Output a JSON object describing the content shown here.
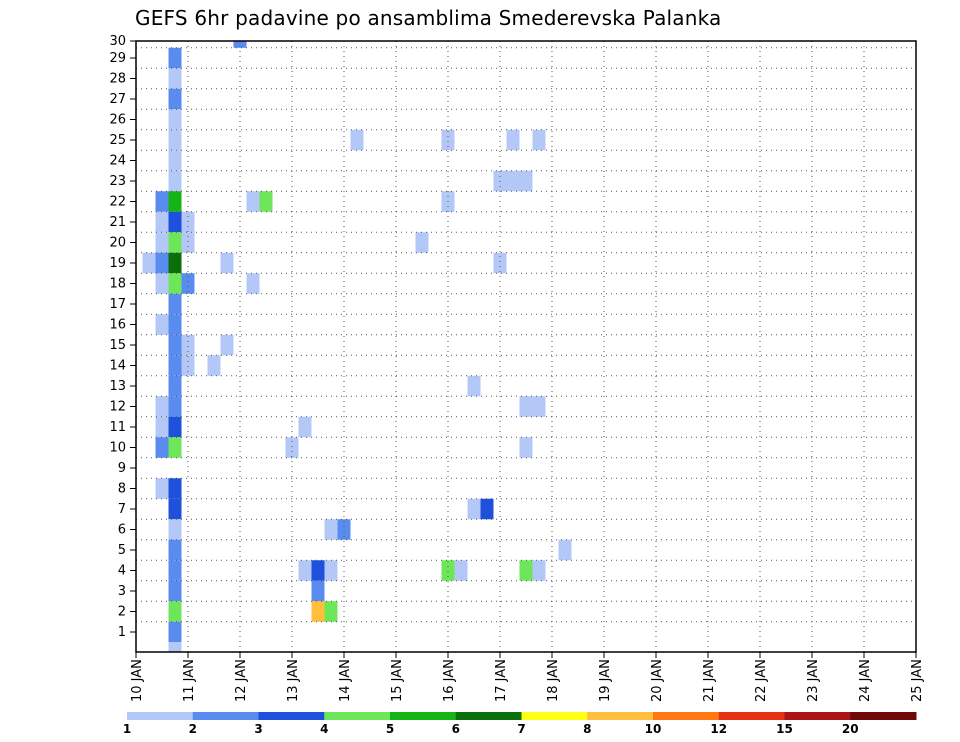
{
  "chart_data": {
    "type": "heatmap",
    "title": "GEFS 6hr padavine po ansamblima Smederevska Palanka",
    "xlabel": "",
    "ylabel": "",
    "x_tick_labels": [
      "10 JAN",
      "11 JAN",
      "12 JAN",
      "13 JAN",
      "14 JAN",
      "15 JAN",
      "16 JAN",
      "17 JAN",
      "18 JAN",
      "19 JAN",
      "20 JAN",
      "21 JAN",
      "22 JAN",
      "23 JAN",
      "24 JAN",
      "25 JAN"
    ],
    "y_tick_labels": [
      "1",
      "2",
      "3",
      "4",
      "5",
      "6",
      "7",
      "8",
      "9",
      "10",
      "11",
      "12",
      "13",
      "14",
      "15",
      "16",
      "17",
      "18",
      "19",
      "20",
      "21",
      "22",
      "23",
      "24",
      "25",
      "26",
      "27",
      "28",
      "29",
      "30"
    ],
    "ylim": [
      1,
      30
    ],
    "grid": true,
    "colorbar": {
      "position": "bottom",
      "colors": [
        "#b4c8f8",
        "#5a8cf0",
        "#1e50dc",
        "#6ee65a",
        "#14b414",
        "#0a6e0a",
        "#ffff14",
        "#ffbe3c",
        "#ff7814",
        "#e63214",
        "#aa1414",
        "#6e0a0a"
      ],
      "labels": [
        "1",
        "2",
        "3",
        "4",
        "5",
        "6",
        "7",
        "8",
        "10",
        "12",
        "15",
        "20"
      ]
    },
    "cells_note": "x = forecast 6-hour step index from 10 JAN 00Z (4 steps per day); y = ensemble member; level = colorbar bin index (0 = 1-2 mm)",
    "cells": [
      {
        "x": 6,
        "y": 30,
        "level": 1
      },
      {
        "x": 1,
        "y": 29,
        "level": 1
      },
      {
        "x": 1,
        "y": 28,
        "level": 0
      },
      {
        "x": 1,
        "y": 27,
        "level": 1
      },
      {
        "x": 1,
        "y": 26,
        "level": 0
      },
      {
        "x": 1,
        "y": 25,
        "level": 0
      },
      {
        "x": 15,
        "y": 25,
        "level": 0
      },
      {
        "x": 22,
        "y": 25,
        "level": 0
      },
      {
        "x": 27,
        "y": 25,
        "level": 0
      },
      {
        "x": 29,
        "y": 25,
        "level": 0
      },
      {
        "x": 1,
        "y": 24,
        "level": 0
      },
      {
        "x": 1,
        "y": 23,
        "level": 0
      },
      {
        "x": 26,
        "y": 23,
        "level": 0
      },
      {
        "x": 27,
        "y": 23,
        "level": 0
      },
      {
        "x": 28,
        "y": 23,
        "level": 0
      },
      {
        "x": 0,
        "y": 22,
        "level": 1
      },
      {
        "x": 1,
        "y": 22,
        "level": 4
      },
      {
        "x": 7,
        "y": 22,
        "level": 0
      },
      {
        "x": 8,
        "y": 22,
        "level": 3
      },
      {
        "x": 22,
        "y": 22,
        "level": 0
      },
      {
        "x": 0,
        "y": 21,
        "level": 0
      },
      {
        "x": 1,
        "y": 21,
        "level": 2
      },
      {
        "x": 2,
        "y": 21,
        "level": 0
      },
      {
        "x": 0,
        "y": 20,
        "level": 0
      },
      {
        "x": 1,
        "y": 20,
        "level": 3
      },
      {
        "x": 2,
        "y": 20,
        "level": 0
      },
      {
        "x": 20,
        "y": 20,
        "level": 0
      },
      {
        "x": -1,
        "y": 19,
        "level": 0
      },
      {
        "x": 0,
        "y": 19,
        "level": 1
      },
      {
        "x": 1,
        "y": 19,
        "level": 5
      },
      {
        "x": 5,
        "y": 19,
        "level": 0
      },
      {
        "x": 26,
        "y": 19,
        "level": 0
      },
      {
        "x": 0,
        "y": 18,
        "level": 0
      },
      {
        "x": 1,
        "y": 18,
        "level": 3
      },
      {
        "x": 2,
        "y": 18,
        "level": 1
      },
      {
        "x": 7,
        "y": 18,
        "level": 0
      },
      {
        "x": 1,
        "y": 17,
        "level": 1
      },
      {
        "x": 0,
        "y": 16,
        "level": 0
      },
      {
        "x": 1,
        "y": 16,
        "level": 1
      },
      {
        "x": 1,
        "y": 15,
        "level": 1
      },
      {
        "x": 2,
        "y": 15,
        "level": 0
      },
      {
        "x": 5,
        "y": 15,
        "level": 0
      },
      {
        "x": 1,
        "y": 14,
        "level": 1
      },
      {
        "x": 2,
        "y": 14,
        "level": 0
      },
      {
        "x": 4,
        "y": 14,
        "level": 0
      },
      {
        "x": 1,
        "y": 13,
        "level": 1
      },
      {
        "x": 24,
        "y": 13,
        "level": 0
      },
      {
        "x": 0,
        "y": 12,
        "level": 0
      },
      {
        "x": 1,
        "y": 12,
        "level": 1
      },
      {
        "x": 28,
        "y": 12,
        "level": 0
      },
      {
        "x": 29,
        "y": 12,
        "level": 0
      },
      {
        "x": 0,
        "y": 11,
        "level": 0
      },
      {
        "x": 1,
        "y": 11,
        "level": 2
      },
      {
        "x": 11,
        "y": 11,
        "level": 0
      },
      {
        "x": 0,
        "y": 10,
        "level": 1
      },
      {
        "x": 1,
        "y": 10,
        "level": 3
      },
      {
        "x": 10,
        "y": 10,
        "level": 0
      },
      {
        "x": 28,
        "y": 10,
        "level": 0
      },
      {
        "x": 0,
        "y": 8,
        "level": 0
      },
      {
        "x": 1,
        "y": 8,
        "level": 2
      },
      {
        "x": 1,
        "y": 7,
        "level": 2
      },
      {
        "x": 24,
        "y": 7,
        "level": 0
      },
      {
        "x": 25,
        "y": 7,
        "level": 2
      },
      {
        "x": 1,
        "y": 6,
        "level": 0
      },
      {
        "x": 13,
        "y": 6,
        "level": 0
      },
      {
        "x": 14,
        "y": 6,
        "level": 1
      },
      {
        "x": 1,
        "y": 5,
        "level": 1
      },
      {
        "x": 31,
        "y": 5,
        "level": 0
      },
      {
        "x": 1,
        "y": 4,
        "level": 1
      },
      {
        "x": 11,
        "y": 4,
        "level": 0
      },
      {
        "x": 12,
        "y": 4,
        "level": 2
      },
      {
        "x": 13,
        "y": 4,
        "level": 0
      },
      {
        "x": 22,
        "y": 4,
        "level": 3
      },
      {
        "x": 23,
        "y": 4,
        "level": 0
      },
      {
        "x": 28,
        "y": 4,
        "level": 3
      },
      {
        "x": 29,
        "y": 4,
        "level": 0
      },
      {
        "x": 1,
        "y": 3,
        "level": 1
      },
      {
        "x": 12,
        "y": 3,
        "level": 1
      },
      {
        "x": 1,
        "y": 2,
        "level": 3
      },
      {
        "x": 12,
        "y": 2,
        "level": 7
      },
      {
        "x": 13,
        "y": 2,
        "level": 3
      },
      {
        "x": 1,
        "y": 1,
        "level": 1
      },
      {
        "x": 1,
        "y": 0,
        "level": 0
      }
    ]
  }
}
